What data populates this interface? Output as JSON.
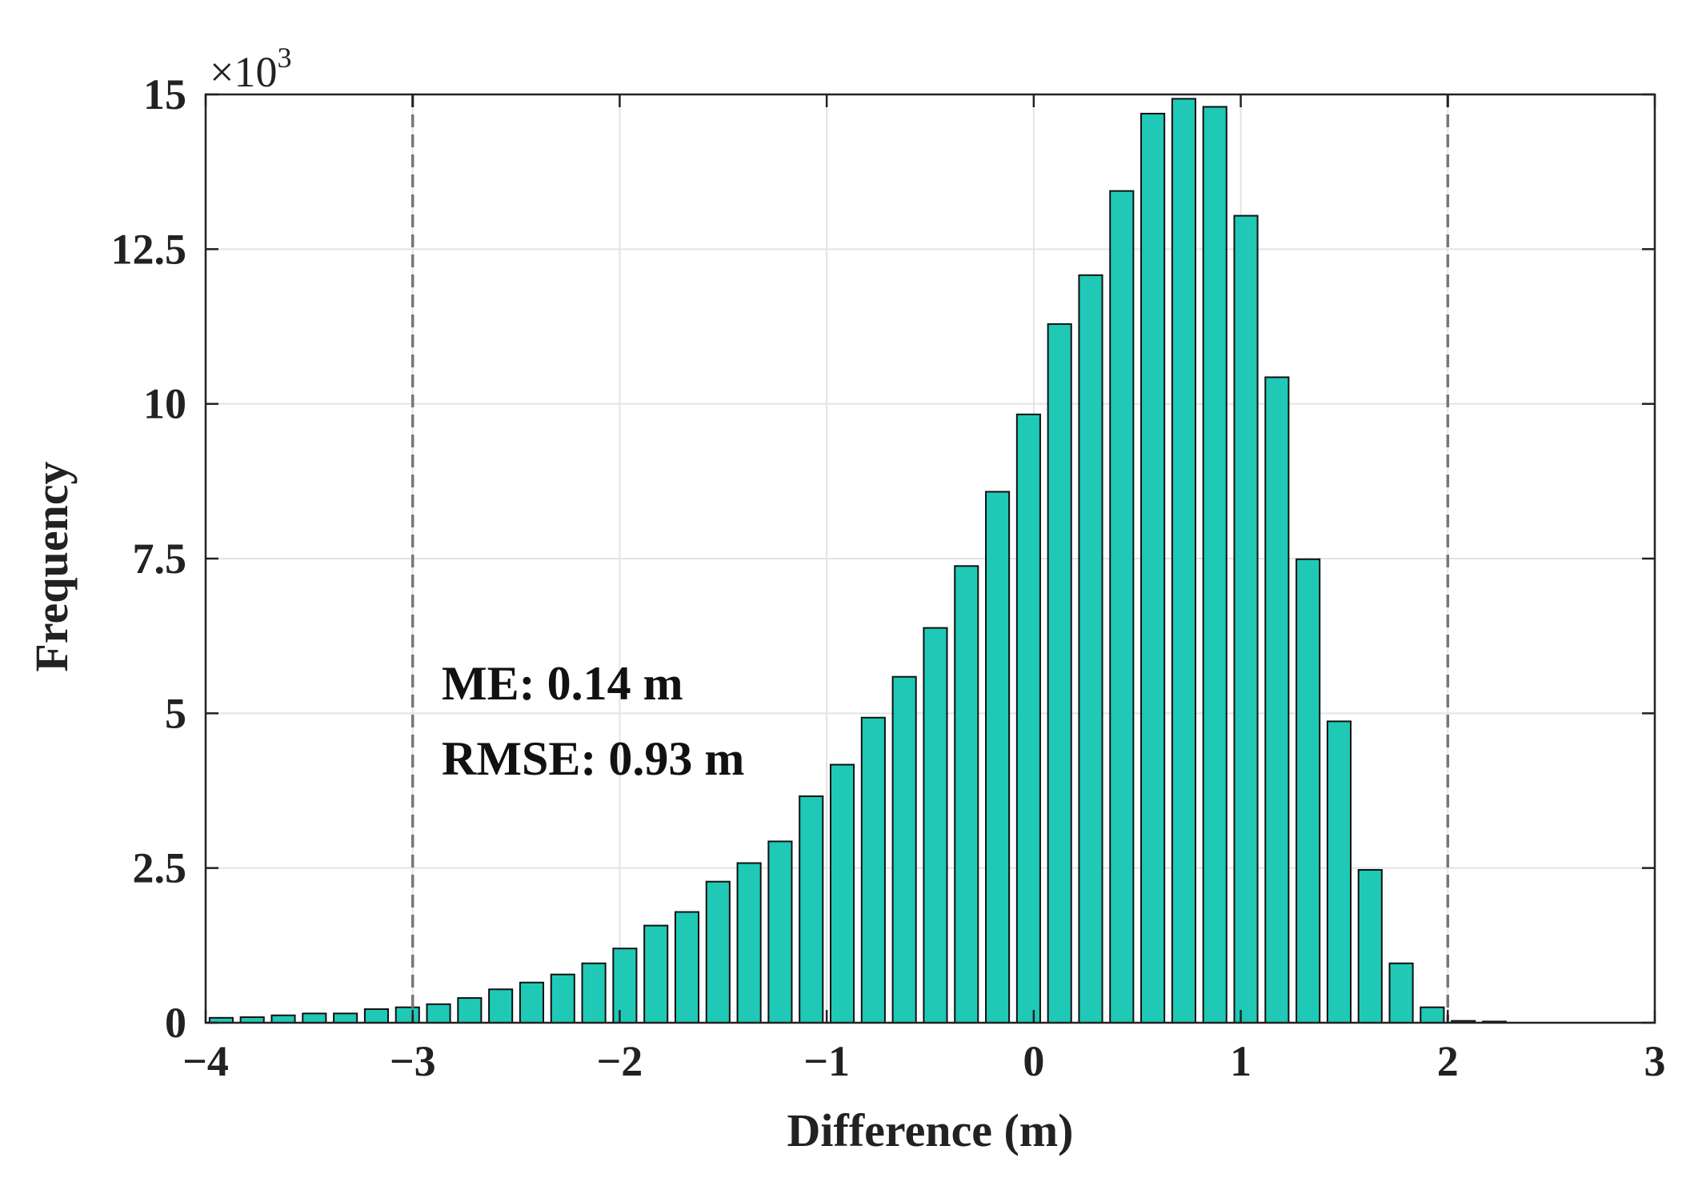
{
  "chart_data": {
    "type": "bar",
    "xlabel": "Difference (m)",
    "ylabel": "Frequency",
    "xlim": [
      -4,
      3
    ],
    "ylim": [
      0,
      15
    ],
    "x_ticks": [
      "−4",
      "−3",
      "−2",
      "−1",
      "0",
      "1",
      "2",
      "3"
    ],
    "x_tick_values": [
      -4,
      -3,
      -2,
      -1,
      0,
      1,
      2,
      3
    ],
    "y_ticks": [
      "0",
      "2.5",
      "5",
      "7.5",
      "10",
      "12.5",
      "15"
    ],
    "y_tick_values": [
      0,
      2.5,
      5,
      7.5,
      10,
      12.5,
      15
    ],
    "y_exponent": {
      "base": "×10",
      "power": "3"
    },
    "y_unit_scale": 1000,
    "grid": true,
    "bar_color": "#1fc9b6",
    "bar_edge_color": "#111111",
    "bin_width": 0.15,
    "bin_centers": [
      -3.925,
      -3.775,
      -3.625,
      -3.475,
      -3.325,
      -3.175,
      -3.025,
      -2.875,
      -2.725,
      -2.575,
      -2.425,
      -2.275,
      -2.125,
      -1.975,
      -1.825,
      -1.675,
      -1.525,
      -1.375,
      -1.225,
      -1.075,
      -0.925,
      -0.775,
      -0.625,
      -0.475,
      -0.325,
      -0.175,
      -0.025,
      0.125,
      0.275,
      0.425,
      0.575,
      0.725,
      0.875,
      1.025,
      1.175,
      1.325,
      1.475,
      1.625,
      1.775,
      1.925,
      2.075,
      2.225
    ],
    "values": [
      0.08,
      0.09,
      0.12,
      0.15,
      0.15,
      0.22,
      0.25,
      0.3,
      0.4,
      0.54,
      0.65,
      0.78,
      0.96,
      1.2,
      1.57,
      1.79,
      2.28,
      2.58,
      2.93,
      3.66,
      4.17,
      4.93,
      5.59,
      6.38,
      7.38,
      8.58,
      9.83,
      11.29,
      12.08,
      13.44,
      14.69,
      14.93,
      14.8,
      13.04,
      10.43,
      7.49,
      4.87,
      2.47,
      0.96,
      0.25,
      0.03,
      0.02
    ],
    "reference_lines": [
      {
        "x": -3,
        "style": "dashed",
        "color": "#777777"
      },
      {
        "x": 2,
        "style": "dashed",
        "color": "#777777"
      }
    ],
    "annotations": [
      {
        "text": "ME: 0.14 m"
      },
      {
        "text": "RMSE: 0.93 m"
      }
    ]
  }
}
